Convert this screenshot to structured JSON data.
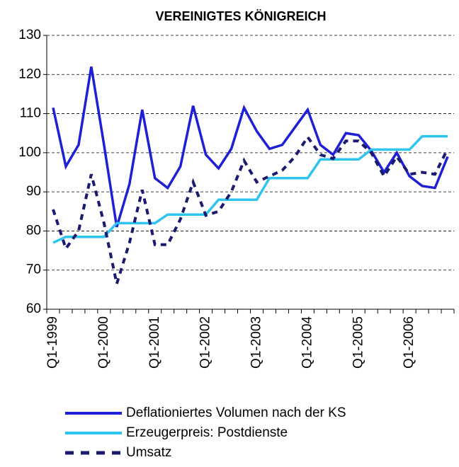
{
  "chart_data": {
    "type": "line",
    "title": "VEREINIGTES KÖNIGREICH",
    "categories": [
      "Q1-1999",
      null,
      null,
      null,
      "Q1-2000",
      null,
      null,
      null,
      "Q1-2001",
      null,
      null,
      null,
      "Q1-2002",
      null,
      null,
      null,
      "Q1-2003",
      null,
      null,
      null,
      "Q1-2004",
      null,
      null,
      null,
      "Q1-2005",
      null,
      null,
      null,
      "Q1-2006",
      null,
      null,
      null
    ],
    "series": [
      {
        "name": "Deflationiertes Volumen nach der KS",
        "color": "#1f1fd6",
        "dash": false,
        "values": [
          111.5,
          96.5,
          102,
          122,
          102,
          81,
          92,
          111,
          93.5,
          91,
          96.5,
          112,
          99.5,
          96,
          101,
          111.5,
          105.5,
          101,
          102,
          106.5,
          111,
          102,
          99.5,
          105,
          104.5,
          100.5,
          95,
          100,
          94,
          91.5,
          91,
          99
        ]
      },
      {
        "name": "Erzeugerpreis: Postdienste",
        "color": "#2ec4f0",
        "dash": false,
        "values": [
          77,
          78.5,
          78.5,
          78.5,
          78.5,
          82,
          82,
          82,
          82,
          84.2,
          84.2,
          84.2,
          84.2,
          88,
          88,
          88,
          88,
          93.5,
          93.5,
          93.5,
          93.5,
          98.3,
          98.3,
          98.3,
          98.3,
          100.8,
          100.8,
          100.8,
          100.8,
          104.2,
          104.2,
          104.2
        ]
      },
      {
        "name": "Umsatz",
        "color": "#1a1a6e",
        "dash": true,
        "values": [
          85.5,
          75.5,
          80,
          94.5,
          82,
          66.5,
          77,
          90.5,
          76.5,
          76.5,
          83,
          92.5,
          84,
          85,
          90,
          98,
          92.5,
          94,
          95.5,
          99,
          104,
          99.5,
          98.5,
          103,
          103,
          100,
          94,
          99,
          94.5,
          95,
          94.5,
          101
        ]
      }
    ],
    "ylim": [
      60,
      130
    ],
    "yticks": [
      60,
      70,
      80,
      90,
      100,
      110,
      120,
      130
    ],
    "grid": true
  }
}
